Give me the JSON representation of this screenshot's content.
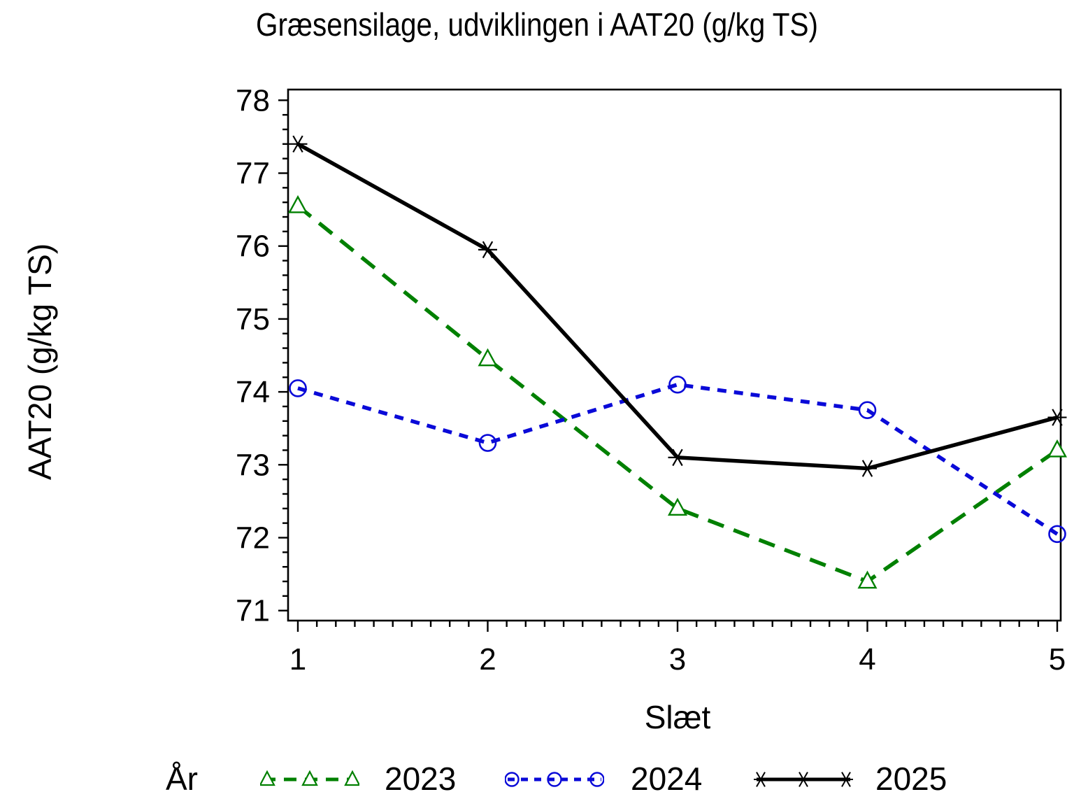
{
  "title": "Græsensilage, udviklingen i AAT20 (g/kg TS)",
  "chart_data": {
    "type": "line",
    "title": "Græsensilage, udviklingen i AAT20 (g/kg TS)",
    "xlabel": "Slæt",
    "ylabel": "AAT20 (g/kg TS)",
    "x": [
      1,
      2,
      3,
      4,
      5
    ],
    "x_ticks": [
      "1",
      "2",
      "3",
      "4",
      "5"
    ],
    "y_ticks": [
      71,
      72,
      73,
      74,
      75,
      76,
      77,
      78
    ],
    "ylim": [
      71,
      78
    ],
    "xlim": [
      1,
      5
    ],
    "y_minor_step": 0.2,
    "x_minor_step": 0.1,
    "grid": false,
    "legend_label": "År",
    "legend_position": "bottom",
    "series": [
      {
        "name": "2023",
        "color": "#008000",
        "line_style": "dashed",
        "marker": "triangle",
        "values": [
          76.55,
          74.45,
          72.4,
          71.4,
          73.2
        ]
      },
      {
        "name": "2024",
        "color": "#0a0ad8",
        "line_style": "dashed-short",
        "marker": "circle",
        "values": [
          74.05,
          73.3,
          74.1,
          73.75,
          72.05
        ]
      },
      {
        "name": "2025",
        "color": "#000000",
        "line_style": "solid",
        "marker": "asterisk",
        "values": [
          77.4,
          75.95,
          73.1,
          72.95,
          73.65
        ]
      }
    ]
  }
}
